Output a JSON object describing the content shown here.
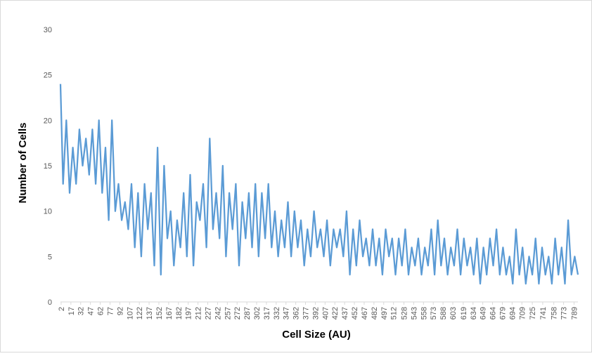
{
  "chart_data": {
    "type": "line",
    "title": "",
    "xlabel": "Cell Size (AU)",
    "ylabel": "Number of Cells",
    "ylim": [
      0,
      30
    ],
    "yticks": [
      0,
      5,
      10,
      15,
      20,
      25,
      30
    ],
    "xlim": [
      1,
      795
    ],
    "xticks": [
      2,
      17,
      32,
      47,
      62,
      77,
      92,
      107,
      122,
      137,
      152,
      167,
      182,
      197,
      212,
      227,
      242,
      257,
      272,
      287,
      302,
      317,
      332,
      347,
      362,
      377,
      392,
      407,
      422,
      437,
      452,
      467,
      482,
      497,
      512,
      528,
      543,
      558,
      573,
      588,
      603,
      619,
      634,
      649,
      664,
      679,
      694,
      709,
      725,
      741,
      758,
      773,
      789
    ],
    "grid": false,
    "legend": "none",
    "series": [
      {
        "color": "#5b9bd5",
        "x": [
          1,
          5,
          10,
          15,
          20,
          25,
          30,
          35,
          40,
          45,
          50,
          55,
          60,
          65,
          70,
          75,
          80,
          85,
          90,
          95,
          100,
          105,
          110,
          115,
          120,
          125,
          130,
          135,
          140,
          145,
          150,
          155,
          160,
          165,
          170,
          175,
          180,
          185,
          190,
          195,
          200,
          205,
          210,
          215,
          220,
          225,
          230,
          235,
          240,
          245,
          250,
          255,
          260,
          265,
          270,
          275,
          280,
          285,
          290,
          295,
          300,
          305,
          310,
          315,
          320,
          325,
          330,
          335,
          340,
          345,
          350,
          355,
          360,
          365,
          370,
          375,
          380,
          385,
          390,
          395,
          400,
          405,
          410,
          415,
          420,
          425,
          430,
          435,
          440,
          445,
          450,
          455,
          460,
          465,
          470,
          475,
          480,
          485,
          490,
          495,
          500,
          505,
          510,
          515,
          520,
          525,
          530,
          535,
          540,
          545,
          550,
          555,
          560,
          565,
          570,
          575,
          580,
          585,
          590,
          595,
          600,
          605,
          610,
          615,
          620,
          625,
          630,
          635,
          640,
          645,
          650,
          655,
          660,
          665,
          670,
          675,
          680,
          685,
          690,
          695,
          700,
          705,
          710,
          715,
          720,
          725,
          730,
          735,
          740,
          745,
          750,
          755,
          760,
          765,
          770,
          775,
          780,
          785,
          790,
          795
        ],
        "y": [
          24,
          13,
          20,
          12,
          17,
          13,
          19,
          15,
          18,
          14,
          19,
          13,
          20,
          12,
          17,
          9,
          20,
          10,
          13,
          9,
          11,
          8,
          13,
          6,
          12,
          5,
          13,
          8,
          12,
          4,
          17,
          3,
          15,
          7,
          10,
          4,
          9,
          6,
          12,
          5,
          14,
          4,
          11,
          9,
          13,
          6,
          18,
          8,
          12,
          7,
          15,
          5,
          12,
          8,
          13,
          4,
          11,
          7,
          12,
          6,
          13,
          5,
          12,
          7,
          13,
          6,
          10,
          5,
          9,
          6,
          11,
          5,
          10,
          6,
          9,
          4,
          8,
          5,
          10,
          6,
          8,
          5,
          9,
          4,
          8,
          6,
          8,
          5,
          10,
          3,
          8,
          4,
          9,
          5,
          7,
          4,
          8,
          4,
          7,
          3,
          8,
          5,
          7,
          3,
          7,
          4,
          8,
          3,
          6,
          4,
          7,
          3,
          6,
          4,
          8,
          3,
          9,
          4,
          7,
          3,
          6,
          4,
          8,
          3,
          7,
          4,
          6,
          3,
          7,
          2,
          6,
          3,
          7,
          4,
          8,
          3,
          6,
          3,
          5,
          2,
          8,
          3,
          6,
          2,
          5,
          3,
          7,
          2,
          6,
          3,
          5,
          2,
          7,
          3,
          6,
          2,
          9,
          3,
          5,
          3
        ]
      }
    ]
  }
}
